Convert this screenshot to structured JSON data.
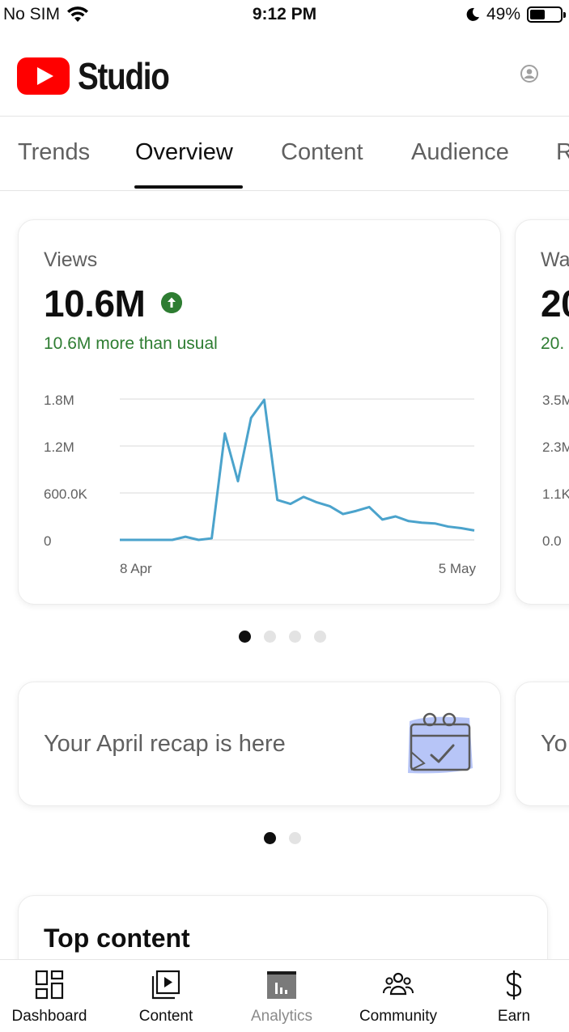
{
  "status_bar": {
    "carrier": "No SIM",
    "time": "9:12 PM",
    "battery": "49%",
    "battery_level": 0.49
  },
  "header": {
    "app_name": "Studio"
  },
  "tabs": [
    {
      "label": "Trends"
    },
    {
      "label": "Overview"
    },
    {
      "label": "Content"
    },
    {
      "label": "Audience"
    },
    {
      "label": "R"
    }
  ],
  "views_card": {
    "title": "Views",
    "value": "10.6M",
    "trend_text": "10.6M more than usual",
    "chart_data": {
      "type": "line",
      "color": "#4ba3cc",
      "y_ticks": [
        "1.8M",
        "1.2M",
        "600.0K",
        "0"
      ],
      "x_ticks": [
        "8 Apr",
        "5 May"
      ],
      "ylim": [
        0,
        1800000
      ],
      "x": [
        0,
        1,
        2,
        3,
        4,
        5,
        6,
        7,
        8,
        9,
        10,
        11,
        12,
        13,
        14,
        15,
        16,
        17,
        18,
        19,
        20,
        21,
        22,
        23,
        24,
        25,
        26,
        27
      ],
      "values": [
        0,
        0,
        0,
        0,
        0,
        40000,
        0,
        20000,
        1360000,
        750000,
        1560000,
        1790000,
        510000,
        460000,
        550000,
        480000,
        430000,
        330000,
        370000,
        420000,
        260000,
        300000,
        240000,
        220000,
        210000,
        170000,
        150000,
        120000
      ]
    }
  },
  "next_card": {
    "title": "Wa",
    "value": "20",
    "sub": "20.",
    "y_ticks": [
      "3.5M",
      "2.3M",
      "1.1K",
      "0.0"
    ]
  },
  "recap_card": {
    "text": "Your April recap is here"
  },
  "recap_next_card": {
    "text": "Yo"
  },
  "top_content": {
    "title": "Top content"
  },
  "bottom_nav": [
    {
      "label": "Dashboard",
      "icon": "dashboard-icon"
    },
    {
      "label": "Content",
      "icon": "content-icon"
    },
    {
      "label": "Analytics",
      "icon": "analytics-icon"
    },
    {
      "label": "Community",
      "icon": "community-icon"
    },
    {
      "label": "Earn",
      "icon": "earn-icon"
    }
  ],
  "colors": {
    "accent_green": "#2e7d32",
    "chart_line": "#4ba3cc",
    "youtube_red": "#ff0000"
  }
}
